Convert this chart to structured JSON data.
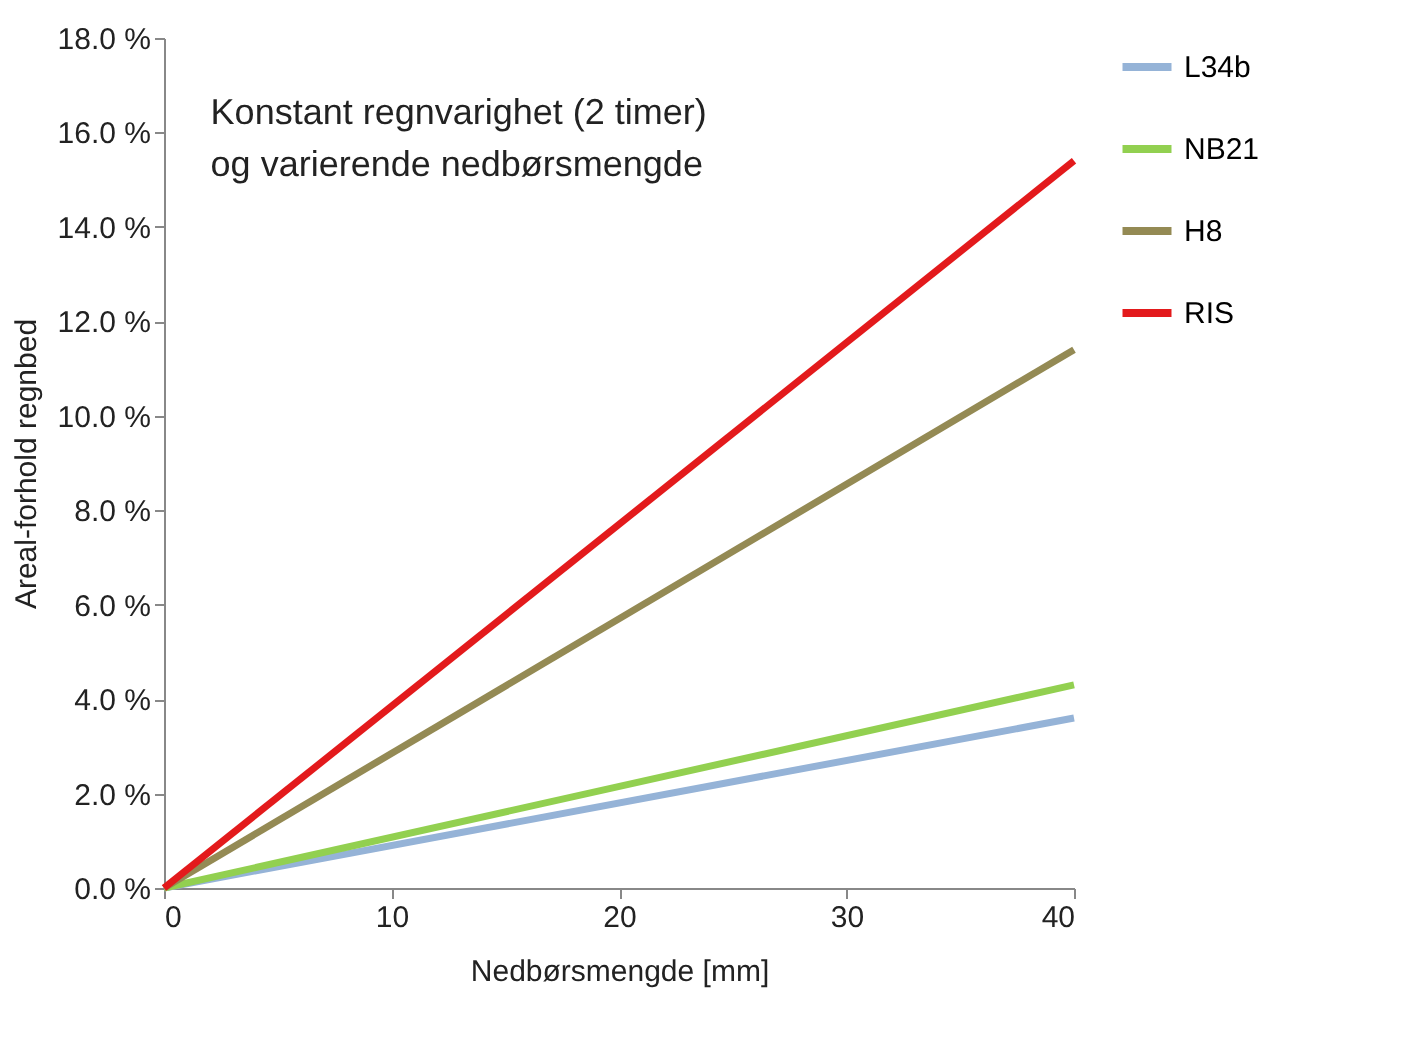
{
  "chart_data": {
    "type": "line",
    "title": "Konstant regnvarighet (2 timer)\nog varierende nedbørsmengde",
    "xlabel": "Nedbørsmengde [mm]",
    "ylabel": "Areal-forhold regnbed",
    "x": [
      0,
      40
    ],
    "series": [
      {
        "name": "L34b",
        "color": "#95b3d7",
        "values": [
          0,
          3.6
        ]
      },
      {
        "name": "NB21",
        "color": "#92d050",
        "values": [
          0,
          4.3
        ]
      },
      {
        "name": "H8",
        "color": "#948a54",
        "values": [
          0,
          11.4
        ]
      },
      {
        "name": "RIS",
        "color": "#e31a1c",
        "values": [
          0,
          15.4
        ]
      }
    ],
    "xlim": [
      0,
      40
    ],
    "xticks": [
      0,
      10,
      20,
      30,
      40
    ],
    "ylim": [
      0,
      18
    ],
    "yticks": [
      {
        "value": 0,
        "label": "0.0 %"
      },
      {
        "value": 2,
        "label": "2.0 %"
      },
      {
        "value": 4,
        "label": "4.0 %"
      },
      {
        "value": 6,
        "label": "6.0 %"
      },
      {
        "value": 8,
        "label": "8.0 %"
      },
      {
        "value": 10,
        "label": "10.0 %"
      },
      {
        "value": 12,
        "label": "12.0 %"
      },
      {
        "value": 14,
        "label": "14.0 %"
      },
      {
        "value": 16,
        "label": "16.0 %"
      },
      {
        "value": 18,
        "label": "18.0 %"
      }
    ],
    "grid": false,
    "legend": "right",
    "marker": "none",
    "line_style": "solid"
  }
}
